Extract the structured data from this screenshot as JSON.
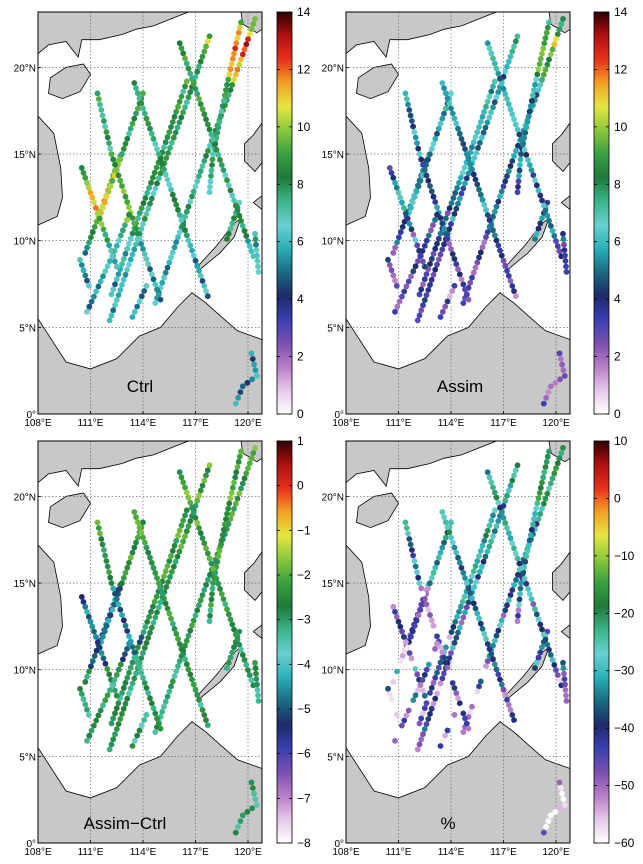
{
  "x_ticks": [
    "108°E",
    "111°E",
    "114°E",
    "117°E",
    "120°E"
  ],
  "y_ticks": [
    "0°",
    "5°N",
    "10°N",
    "15°N",
    "20°N"
  ],
  "panels": [
    {
      "label": "Ctrl",
      "colorbar": {
        "ticks": [
          "14",
          "12",
          "10",
          "8",
          "6",
          "4",
          "2",
          "0"
        ],
        "min": 0,
        "max": 14
      },
      "value_mode": "ctrl"
    },
    {
      "label": "Assim",
      "colorbar": {
        "ticks": [
          "14",
          "12",
          "10",
          "8",
          "6",
          "4",
          "2",
          "0"
        ],
        "min": 0,
        "max": 14
      },
      "value_mode": "assim"
    },
    {
      "label": "Assim−Ctrl",
      "colorbar": {
        "ticks": [
          "1",
          "0",
          "−1",
          "−2",
          "−3",
          "−4",
          "−5",
          "−6",
          "−7",
          "−8"
        ],
        "min": -8,
        "max": 1
      },
      "value_mode": "diff"
    },
    {
      "label": "%",
      "colorbar": {
        "ticks": [
          "10",
          "0",
          "−10",
          "−20",
          "−30",
          "−40",
          "−50",
          "−60"
        ],
        "min": -60,
        "max": 10
      },
      "value_mode": "pct"
    }
  ],
  "colormap": [
    "#ffffff",
    "#e6c8ea",
    "#b87ec8",
    "#7a4fb0",
    "#3a3fb0",
    "#1e2a6a",
    "#1a6a80",
    "#2ab0b8",
    "#6ad0d0",
    "#3ab48a",
    "#1e7a3a",
    "#3aa040",
    "#8ac83c",
    "#e6e640",
    "#f2a024",
    "#e8301c",
    "#b01010",
    "#300000"
  ],
  "land_color": "#c8c8c8",
  "grid": "dotted"
}
